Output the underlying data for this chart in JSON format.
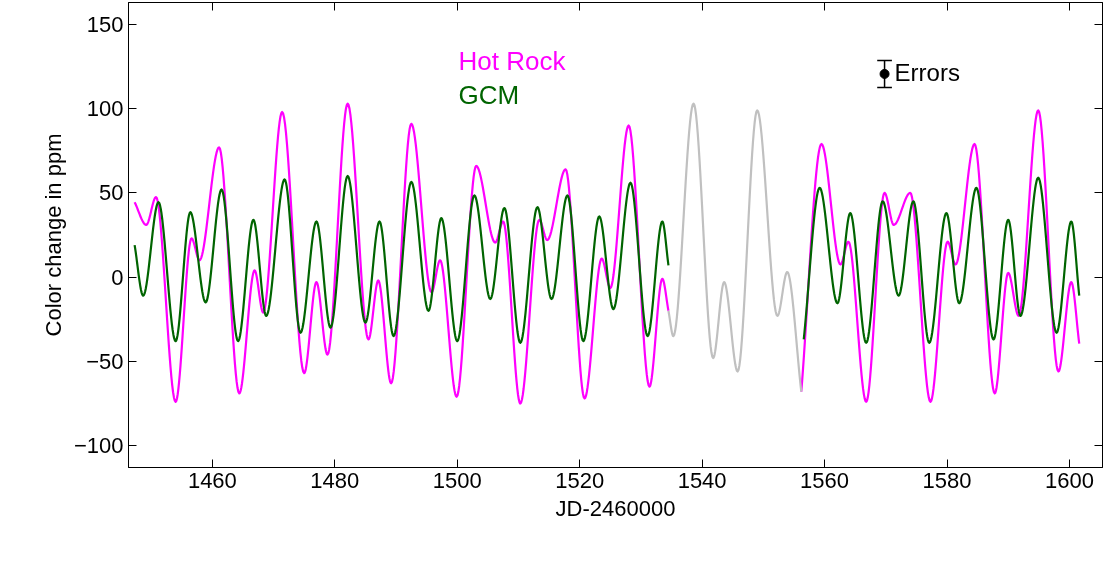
{
  "chart_data": {
    "type": "line",
    "xlabel": "JD-2460000",
    "ylabel": "Color change in ppm",
    "xlim": [
      1446.3,
      1605.4
    ],
    "ylim": [
      -113,
      163
    ],
    "xticks": [
      1460,
      1480,
      1500,
      1520,
      1540,
      1560,
      1580,
      1600
    ],
    "yticks": [
      -100,
      -50,
      0,
      50,
      100,
      150
    ],
    "grid": false,
    "series": [
      {
        "name": "Hot Rock",
        "color": "#ff00ff",
        "x": [
          1447.3,
          1449.2,
          1450.8,
          1454.0,
          1456.6,
          1457.9,
          1461.1,
          1464.4,
          1466.9,
          1468.3,
          1471.4,
          1475.0,
          1477.0,
          1478.8,
          1482.1,
          1485.5,
          1487.1,
          1489.2,
          1492.5,
          1495.8,
          1497.2,
          1499.9,
          1503.1,
          1506.2,
          1507.5,
          1510.3,
          1513.4,
          1514.7,
          1517.7,
          1520.8,
          1523.6,
          1525.0,
          1528.0,
          1531.4,
          1533.5,
          1534.5,
          1545.0,
          1556.2,
          1559.5,
          1562.6,
          1563.9,
          1566.8,
          1569.8,
          1571.3,
          1574.0,
          1577.3,
          1580.1,
          1581.4,
          1584.5,
          1587.8,
          1590.0,
          1591.7,
          1594.9,
          1598.2,
          1600.3,
          1601.6
        ],
        "values": [
          44.5,
          31,
          47.5,
          -74,
          23,
          10,
          77,
          -69,
          4,
          -21,
          98,
          -57,
          -3,
          -46,
          103,
          -37,
          -2,
          -63,
          91,
          -9,
          10,
          -71,
          66,
          20.5,
          33,
          -75,
          34,
          22,
          64,
          -72,
          11,
          -6.5,
          90,
          -65,
          -1,
          -20,
          null,
          -68,
          79,
          7.5,
          21,
          -74,
          50,
          31,
          50,
          -74,
          21,
          7.5,
          79,
          -69,
          2.5,
          -23,
          99,
          -56,
          -3,
          -39.5
        ]
      },
      {
        "name": "GCM",
        "color": "#006400",
        "x": [
          1447.3,
          1448.7,
          1451.2,
          1454.0,
          1456.4,
          1458.9,
          1461.5,
          1464.2,
          1466.7,
          1468.8,
          1471.8,
          1474.4,
          1477.0,
          1479.3,
          1482.1,
          1485.0,
          1487.3,
          1489.6,
          1492.5,
          1495.3,
          1497.4,
          1500.0,
          1502.8,
          1505.4,
          1507.7,
          1510.3,
          1513.1,
          1515.4,
          1518.0,
          1520.6,
          1523.2,
          1525.5,
          1528.3,
          1531.1,
          1533.5,
          1534.5,
          1545.0,
          1556.6,
          1559.2,
          1562.1,
          1564.2,
          1566.8,
          1569.5,
          1572.1,
          1574.5,
          1577.1,
          1579.9,
          1582.0,
          1584.8,
          1587.6,
          1590.0,
          1592.0,
          1594.9,
          1597.9,
          1600.3,
          1601.6
        ],
        "values": [
          19,
          -11,
          44.5,
          -38,
          38.5,
          -15,
          52,
          -38,
          34,
          -23,
          58,
          -33,
          33,
          -30,
          60,
          -27,
          33,
          -35,
          56.5,
          -20,
          35,
          -38,
          48.5,
          -13,
          41,
          -39,
          41.5,
          -13,
          48.5,
          -38,
          36,
          -19,
          56,
          -35,
          33,
          7,
          null,
          -37,
          53,
          -15.5,
          38,
          -39,
          45,
          -11,
          45,
          -39,
          38,
          -15.5,
          53,
          -37,
          34,
          -23,
          59,
          -33,
          33,
          -11
        ]
      },
      {
        "color": "#c0c0c0",
        "x": [
          1534.5,
          1535.3,
          1538.6,
          1541.8,
          1543.6,
          1545.8,
          1549.0,
          1552.3,
          1553.9,
          1556.2
        ],
        "values": [
          -20,
          -35,
          103,
          -48,
          -3,
          -56,
          99,
          -23,
          3,
          -68
        ]
      },
      {
        "name": "Errors",
        "type": "scatter",
        "marker": "circle",
        "color": "#000000",
        "x": [
          1569.8
        ],
        "values": [
          120.6
        ],
        "errors": [
          8
        ]
      }
    ]
  }
}
